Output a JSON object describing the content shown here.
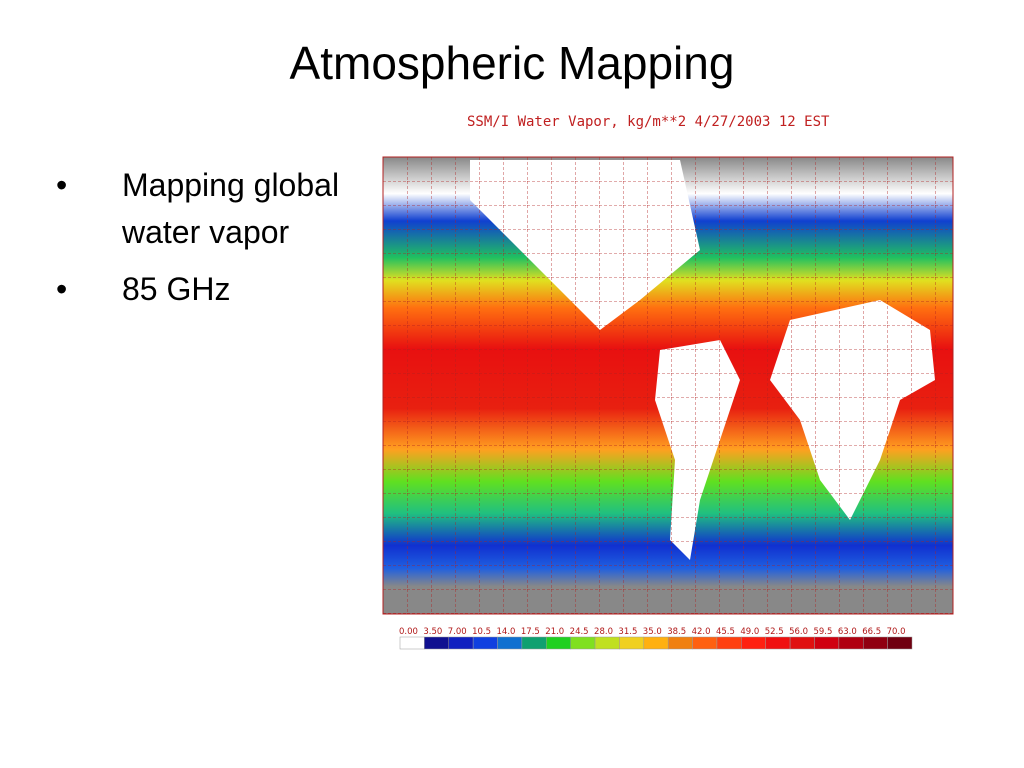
{
  "title": "Atmospheric Mapping",
  "bullets": [
    "Mapping global water vapor",
    "85 GHz"
  ],
  "map": {
    "title": "SSM/I Water Vapor, kg/m**2 4/27/2003 12 EST",
    "colorbar_labels": [
      "0.00",
      "3.50",
      "7.00",
      "10.5",
      "14.0",
      "17.5",
      "21.0",
      "24.5",
      "28.0",
      "31.5",
      "35.0",
      "38.5",
      "42.0",
      "45.5",
      "49.0",
      "52.5",
      "56.0",
      "59.5",
      "63.0",
      "66.5",
      "70.0"
    ]
  }
}
